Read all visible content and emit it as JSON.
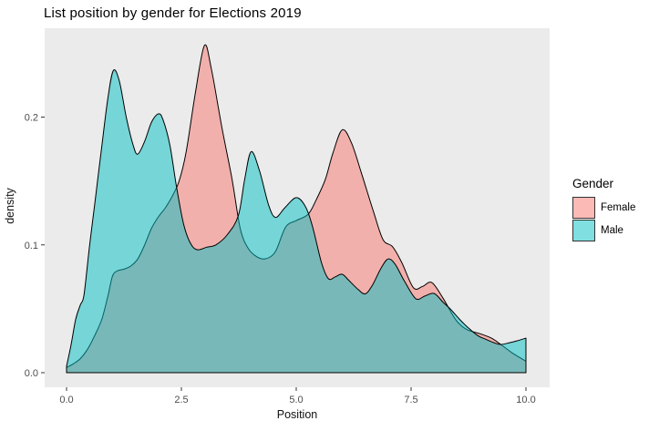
{
  "title": "List position by gender for Elections 2019",
  "legend": {
    "title": "Gender",
    "items": [
      {
        "label": "Female",
        "color": "#F8766D"
      },
      {
        "label": "Male",
        "color": "#00BFC4"
      }
    ]
  },
  "colors": {
    "panel_background": "#EBEBEB",
    "curve_stroke": "#000000",
    "tick_mark": "#333333",
    "tick_label": "#4d4d4d",
    "female_fill": "#F8766D",
    "male_fill": "#00BFC4",
    "fill_opacity": 0.5
  },
  "chart_data": {
    "type": "area",
    "subtype": "overlapping-density",
    "title": "List position by gender for Elections 2019",
    "xlabel": "Position",
    "ylabel": "density",
    "xlim": [
      -0.5,
      10.5
    ],
    "ylim": [
      0,
      0.27
    ],
    "grid": false,
    "legend_position": "right",
    "x_ticks": [
      {
        "value": 0,
        "label": "0.0"
      },
      {
        "value": 2.5,
        "label": "2.5"
      },
      {
        "value": 5,
        "label": "5.0"
      },
      {
        "value": 7.5,
        "label": "7.5"
      },
      {
        "value": 10,
        "label": "10.0"
      }
    ],
    "y_ticks": [
      {
        "value": 0,
        "label": "0.0"
      },
      {
        "value": 0.1,
        "label": "0.1"
      },
      {
        "value": 0.2,
        "label": "0.2"
      }
    ],
    "series": [
      {
        "name": "Female",
        "color": "#F8766D",
        "fill_opacity": 0.5,
        "points": [
          [
            0.0,
            0.004
          ],
          [
            0.15,
            0.007
          ],
          [
            0.3,
            0.011
          ],
          [
            0.45,
            0.018
          ],
          [
            0.6,
            0.028
          ],
          [
            0.77,
            0.042
          ],
          [
            0.9,
            0.06
          ],
          [
            1.0,
            0.0755
          ],
          [
            1.1,
            0.0795
          ],
          [
            1.25,
            0.081
          ],
          [
            1.4,
            0.0835
          ],
          [
            1.55,
            0.089
          ],
          [
            1.7,
            0.1
          ],
          [
            1.85,
            0.113
          ],
          [
            2.0,
            0.122
          ],
          [
            2.15,
            0.129
          ],
          [
            2.3,
            0.138
          ],
          [
            2.45,
            0.15
          ],
          [
            2.6,
            0.172
          ],
          [
            2.8,
            0.218
          ],
          [
            3.0,
            0.256
          ],
          [
            3.15,
            0.238
          ],
          [
            3.38,
            0.192
          ],
          [
            3.6,
            0.152
          ],
          [
            3.78,
            0.113
          ],
          [
            3.95,
            0.0975
          ],
          [
            4.15,
            0.0905
          ],
          [
            4.35,
            0.0893
          ],
          [
            4.55,
            0.095
          ],
          [
            4.77,
            0.114
          ],
          [
            5.0,
            0.119
          ],
          [
            5.26,
            0.124
          ],
          [
            5.43,
            0.135
          ],
          [
            5.63,
            0.151
          ],
          [
            5.8,
            0.172
          ],
          [
            6.0,
            0.19
          ],
          [
            6.2,
            0.18
          ],
          [
            6.42,
            0.156
          ],
          [
            6.69,
            0.125
          ],
          [
            6.89,
            0.104
          ],
          [
            7.1,
            0.0985
          ],
          [
            7.3,
            0.086
          ],
          [
            7.55,
            0.0665
          ],
          [
            7.75,
            0.0675
          ],
          [
            7.95,
            0.0705
          ],
          [
            8.2,
            0.058
          ],
          [
            8.47,
            0.0415
          ],
          [
            8.7,
            0.034
          ],
          [
            9.0,
            0.0305
          ],
          [
            9.25,
            0.027
          ],
          [
            9.45,
            0.0221
          ],
          [
            9.7,
            0.0155
          ],
          [
            10.0,
            0.009
          ]
        ]
      },
      {
        "name": "Male",
        "color": "#00BFC4",
        "fill_opacity": 0.5,
        "points": [
          [
            0.0,
            0.005
          ],
          [
            0.1,
            0.022
          ],
          [
            0.2,
            0.042
          ],
          [
            0.3,
            0.053
          ],
          [
            0.38,
            0.061
          ],
          [
            0.5,
            0.099
          ],
          [
            0.63,
            0.137
          ],
          [
            0.76,
            0.175
          ],
          [
            0.9,
            0.215
          ],
          [
            1.02,
            0.2365
          ],
          [
            1.15,
            0.228
          ],
          [
            1.3,
            0.2
          ],
          [
            1.45,
            0.178
          ],
          [
            1.55,
            0.171
          ],
          [
            1.7,
            0.181
          ],
          [
            1.85,
            0.196
          ],
          [
            2.0,
            0.2025
          ],
          [
            2.1,
            0.198
          ],
          [
            2.25,
            0.178
          ],
          [
            2.4,
            0.144
          ],
          [
            2.55,
            0.116
          ],
          [
            2.7,
            0.101
          ],
          [
            2.85,
            0.0962
          ],
          [
            3.05,
            0.0982
          ],
          [
            3.25,
            0.1
          ],
          [
            3.5,
            0.108
          ],
          [
            3.74,
            0.123
          ],
          [
            3.88,
            0.152
          ],
          [
            4.02,
            0.173
          ],
          [
            4.2,
            0.158
          ],
          [
            4.4,
            0.131
          ],
          [
            4.55,
            0.1215
          ],
          [
            4.75,
            0.129
          ],
          [
            5.0,
            0.137
          ],
          [
            5.2,
            0.13
          ],
          [
            5.35,
            0.115
          ],
          [
            5.55,
            0.086
          ],
          [
            5.7,
            0.0735
          ],
          [
            5.85,
            0.075
          ],
          [
            6.0,
            0.077
          ],
          [
            6.15,
            0.072
          ],
          [
            6.35,
            0.065
          ],
          [
            6.5,
            0.0617
          ],
          [
            6.65,
            0.068
          ],
          [
            6.85,
            0.082
          ],
          [
            7.0,
            0.089
          ],
          [
            7.15,
            0.085
          ],
          [
            7.35,
            0.072
          ],
          [
            7.6,
            0.058
          ],
          [
            7.8,
            0.06
          ],
          [
            8.0,
            0.062
          ],
          [
            8.2,
            0.055
          ],
          [
            8.35,
            0.05
          ],
          [
            8.55,
            0.042
          ],
          [
            8.73,
            0.0356
          ],
          [
            8.95,
            0.029
          ],
          [
            9.13,
            0.0261
          ],
          [
            9.3,
            0.0235
          ],
          [
            9.45,
            0.0221
          ],
          [
            9.65,
            0.0235
          ],
          [
            9.8,
            0.0249
          ],
          [
            10.0,
            0.027
          ]
        ]
      }
    ]
  }
}
